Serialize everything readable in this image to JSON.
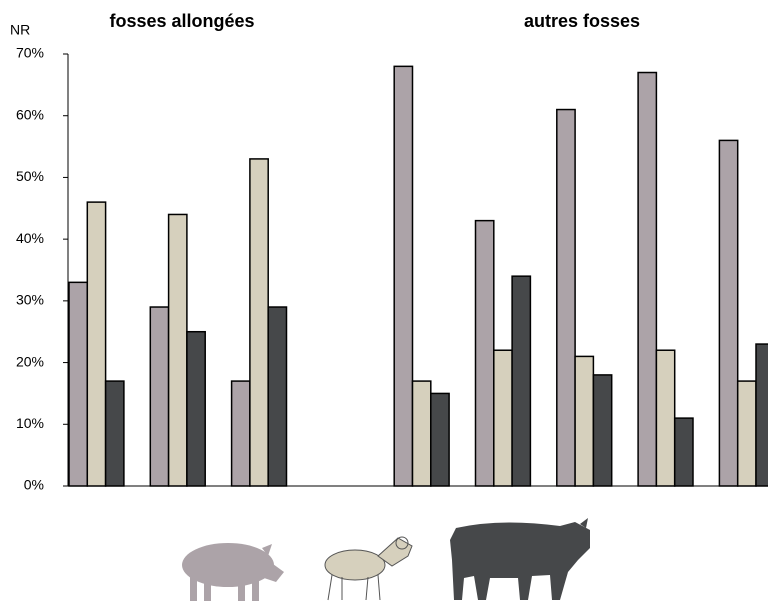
{
  "chart_data": {
    "type": "bar",
    "y_label": "NR",
    "annotations": [
      "fosses allongées",
      "autres fosses"
    ],
    "categories": [
      null,
      null,
      null,
      null,
      null,
      null,
      null,
      null,
      null
    ],
    "series": [
      {
        "color": "#aca3a8",
        "values": [
          33,
          29,
          17,
          null,
          68,
          43,
          61,
          67,
          56
        ]
      },
      {
        "color": "#d6d0bd",
        "values": [
          46,
          44,
          53,
          null,
          17,
          22,
          21,
          22,
          17
        ]
      },
      {
        "color": "#46484a",
        "values": [
          17,
          25,
          29,
          null,
          15,
          34,
          18,
          11,
          23
        ]
      }
    ],
    "ylim": [
      0,
      70
    ],
    "yticks": [
      {
        "value": 0,
        "label": "0%"
      },
      {
        "value": 10,
        "label": "10%"
      },
      {
        "value": 20,
        "label": "20%"
      },
      {
        "value": 30,
        "label": "30%"
      },
      {
        "value": 40,
        "label": "40%"
      },
      {
        "value": 50,
        "label": "50%"
      },
      {
        "value": 60,
        "label": "60%"
      },
      {
        "value": 70,
        "label": "70%"
      }
    ],
    "grid": false
  }
}
